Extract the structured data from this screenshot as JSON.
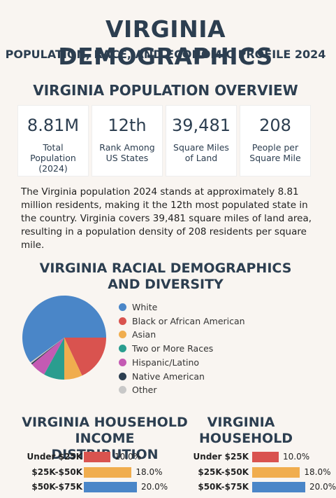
{
  "header": {
    "title": "VIRGINIA DEMOGRAPHICS",
    "subtitle": "POPULATION, RACE, AND ECONOMIC PROFILE 2024"
  },
  "overview": {
    "heading": "VIRGINIA POPULATION OVERVIEW",
    "stats": [
      {
        "value": "8.81M",
        "label": "Total Population (2024)"
      },
      {
        "value": "12th",
        "label": "Rank Among US States"
      },
      {
        "value": "39,481",
        "label": "Square Miles of Land"
      },
      {
        "value": "208",
        "label": "People per Square Mile"
      }
    ],
    "paragraph": "The Virginia population 2024 stands at approximately 8.81 million residents, making it the 12th most populated state in the country. Virginia covers 39,481 square miles of land area, resulting in a population density of 208 residents per square mile."
  },
  "chart_data": [
    {
      "type": "pie",
      "title": "VIRGINIA RACIAL DEMOGRAPHICS AND DIVERSITY",
      "series": [
        {
          "name": "White",
          "color": "#4a86c8",
          "values": [
            60
          ]
        },
        {
          "name": "Black or African American",
          "color": "#d9534f",
          "values": [
            18
          ]
        },
        {
          "name": "Asian",
          "color": "#f0ad4e",
          "values": [
            7
          ]
        },
        {
          "name": "Two or More Races",
          "color": "#2a9d8f",
          "values": [
            8
          ]
        },
        {
          "name": "Hispanic/Latino",
          "color": "#c45ab3",
          "values": [
            6
          ]
        },
        {
          "name": "Native American",
          "color": "#2c3e50",
          "values": [
            0.5
          ]
        },
        {
          "name": "Other",
          "color": "#c8c8c8",
          "values": [
            0.5
          ]
        }
      ]
    },
    {
      "type": "bar",
      "title": "VIRGINIA HOUSEHOLD INCOME DISTRIBUTION",
      "categories": [
        "Under $25K",
        "$25K-$50K",
        "$50K-$75K"
      ],
      "values": [
        10,
        18,
        20
      ],
      "value_labels": [
        "10.0%",
        "18.0%",
        "20.0%"
      ],
      "colors": [
        "#d9534f",
        "#f0ad4e",
        "#4a86c8"
      ]
    },
    {
      "type": "bar",
      "title": "VIRGINIA HOUSEHOLD",
      "categories": [
        "Under $25K",
        "$25K-$50K",
        "$50K-$75K"
      ],
      "values": [
        10,
        18,
        20
      ],
      "value_labels": [
        "10.0%",
        "18.0%",
        "20.0%"
      ],
      "colors": [
        "#d9534f",
        "#f0ad4e",
        "#4a86c8"
      ]
    }
  ]
}
